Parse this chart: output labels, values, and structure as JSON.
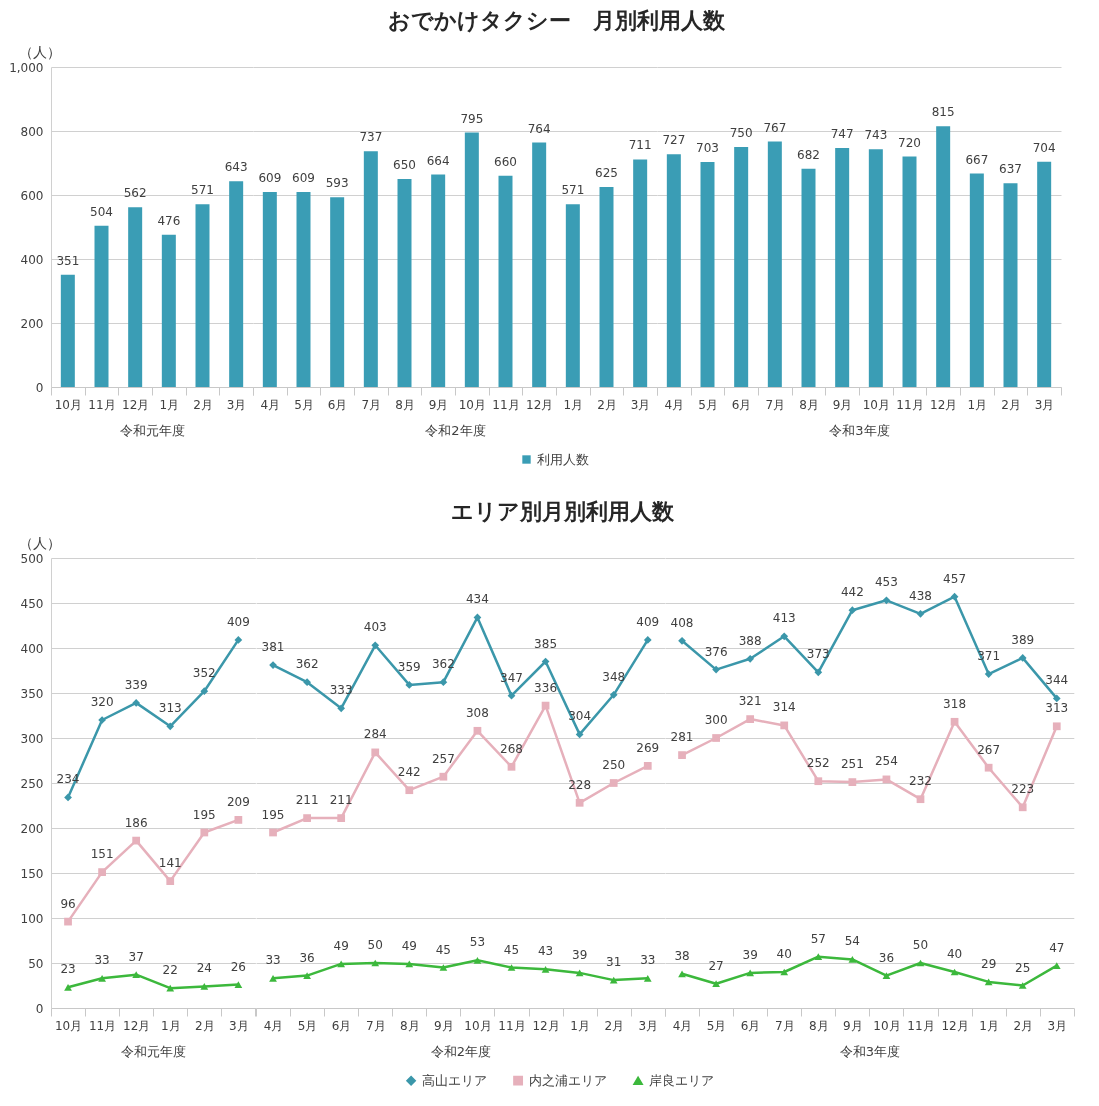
{
  "chart_data": [
    {
      "type": "bar",
      "ylabel": "（人）",
      "xlabel": "令和元年度",
      "categories": [
        "10月",
        "11月",
        "12月",
        "1月",
        "2月",
        "3月"
      ],
      "ylim": [
        0,
        1000
      ],
      "yticks": [
        0,
        200,
        400,
        600,
        800,
        {
          "value": 1000,
          "label": "1,000"
        }
      ],
      "grid": "y",
      "data_labels": true,
      "series": [
        {
          "color": "#3a9db5",
          "values": [
            351,
            504,
            562,
            476,
            571,
            643
          ]
        }
      ]
    },
    {
      "type": "bar",
      "title": "おでかけタクシー　月別利用人数",
      "xlabel": "令和2年度",
      "categories": [
        "4月",
        "5月",
        "6月",
        "7月",
        "8月",
        "9月",
        "10月",
        "11月",
        "12月",
        "1月",
        "2月",
        "3月"
      ],
      "ylim": [
        0,
        1000
      ],
      "yticks": [
        0,
        200,
        400,
        600,
        800,
        1000
      ],
      "grid": "y",
      "tick_labels": "x",
      "legend": "bottom",
      "data_labels": true,
      "series": [
        {
          "name": "利用人数",
          "color": "#3a9db5",
          "values": [
            609,
            609,
            593,
            737,
            650,
            664,
            795,
            660,
            764,
            571,
            625,
            711
          ]
        }
      ]
    },
    {
      "type": "bar",
      "xlabel": "令和3年度",
      "categories": [
        "4月",
        "5月",
        "6月",
        "7月",
        "8月",
        "9月",
        "10月",
        "11月",
        "12月",
        "1月",
        "2月",
        "3月"
      ],
      "ylim": [
        0,
        1000
      ],
      "yticks": [
        0,
        200,
        400,
        600,
        800,
        1000
      ],
      "grid": "y",
      "tick_labels": "x",
      "data_labels": true,
      "series": [
        {
          "color": "#3a9db5",
          "values": [
            727,
            703,
            750,
            767,
            682,
            747,
            743,
            720,
            815,
            667,
            637,
            704
          ]
        }
      ]
    },
    {
      "type": "line",
      "ylabel": "（人）",
      "xlabel": "令和元年度",
      "categories": [
        "10月",
        "11月",
        "12月",
        "1月",
        "2月",
        "3月"
      ],
      "ylim": [
        0,
        500
      ],
      "yticks": [
        0,
        50,
        100,
        150,
        200,
        250,
        300,
        350,
        400,
        450,
        500
      ],
      "grid": "y",
      "data_labels": true,
      "line_style": "solid",
      "series": [
        {
          "color": "#3b97aa",
          "marker": "diamond",
          "values": [
            234,
            320,
            339,
            313,
            352,
            409
          ]
        },
        {
          "color": "#e6b0bb",
          "marker": "square",
          "values": [
            96,
            151,
            186,
            141,
            195,
            209
          ]
        },
        {
          "color": "#3cb83c",
          "marker": "triangle",
          "values": [
            23,
            33,
            37,
            22,
            24,
            26
          ]
        }
      ]
    },
    {
      "type": "line",
      "title": "エリア別月別利用人数",
      "xlabel": "令和2年度",
      "categories": [
        "4月",
        "5月",
        "6月",
        "7月",
        "8月",
        "9月",
        "10月",
        "11月",
        "12月",
        "1月",
        "2月",
        "3月"
      ],
      "ylim": [
        0,
        500
      ],
      "yticks": [
        0,
        50,
        100,
        150,
        200,
        250,
        300,
        350,
        400,
        450,
        500
      ],
      "grid": "y",
      "tick_labels": "x",
      "legend": "bottom",
      "data_labels": true,
      "line_style": "solid",
      "series": [
        {
          "name": "高山エリア",
          "color": "#3b97aa",
          "marker": "diamond",
          "values": [
            381,
            362,
            333,
            403,
            359,
            362,
            434,
            347,
            385,
            304,
            348,
            409
          ]
        },
        {
          "name": "内之浦エリア",
          "color": "#e6b0bb",
          "marker": "square",
          "values": [
            195,
            211,
            211,
            284,
            242,
            257,
            308,
            268,
            336,
            228,
            250,
            269
          ]
        },
        {
          "name": "岸良エリア",
          "color": "#3cb83c",
          "marker": "triangle",
          "values": [
            33,
            36,
            49,
            50,
            49,
            45,
            53,
            45,
            43,
            39,
            31,
            33
          ]
        }
      ]
    },
    {
      "type": "line",
      "xlabel": "令和3年度",
      "categories": [
        "4月",
        "5月",
        "6月",
        "7月",
        "8月",
        "9月",
        "10月",
        "11月",
        "12月",
        "1月",
        "2月",
        "3月"
      ],
      "ylim": [
        0,
        500
      ],
      "yticks": [
        0,
        50,
        100,
        150,
        200,
        250,
        300,
        350,
        400,
        450,
        500
      ],
      "grid": "y",
      "tick_labels": "x",
      "data_labels": true,
      "line_style": "solid",
      "series": [
        {
          "color": "#3b97aa",
          "marker": "diamond",
          "values": [
            408,
            376,
            388,
            413,
            373,
            442,
            453,
            438,
            457,
            371,
            389,
            344
          ]
        },
        {
          "color": "#e6b0bb",
          "marker": "square",
          "values": [
            281,
            300,
            321,
            314,
            252,
            251,
            254,
            232,
            318,
            267,
            223,
            313
          ]
        },
        {
          "color": "#3cb83c",
          "marker": "triangle",
          "values": [
            38,
            27,
            39,
            40,
            57,
            54,
            36,
            50,
            40,
            29,
            25,
            47
          ]
        }
      ]
    }
  ]
}
